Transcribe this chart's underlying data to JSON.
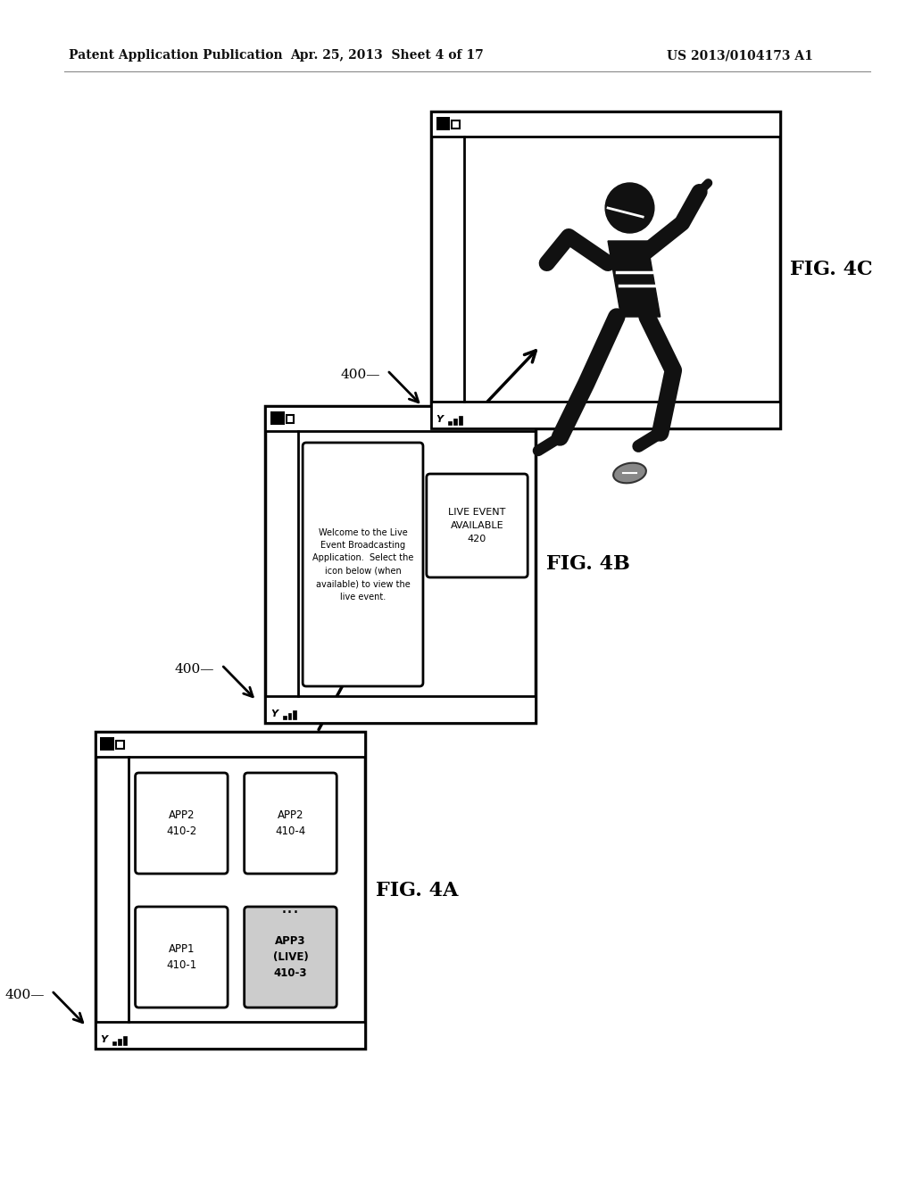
{
  "bg_color": "#ffffff",
  "header_text": "Patent Application Publication",
  "header_date": "Apr. 25, 2013  Sheet 4 of 17",
  "header_patent": "US 2013/0104173 A1",
  "fig4a_label": "FIG. 4A",
  "fig4b_label": "FIG. 4B",
  "fig4c_label": "FIG. 4C",
  "ref_label": "400",
  "phone_border": "#000000",
  "app_box_color": "#ffffff",
  "app3_color": "#d0d0d0",
  "fig4b_welcome": "Welcome to the Live\nEvent Broadcasting\nApplication.  Select the\nicon below (when\navailable) to view the\nlive event.",
  "fig4b_live": "LIVE EVENT\nAVAILABLE\n420",
  "apps_4a": [
    {
      "label": "APP2\n410-2",
      "bold": false,
      "shaded": false
    },
    {
      "label": "APP2\n410-4",
      "bold": false,
      "shaded": false
    },
    {
      "label": "APP1\n410-1",
      "bold": false,
      "shaded": false
    },
    {
      "label": "APP3\n(LIVE)\n410-3",
      "bold": true,
      "shaded": true
    }
  ]
}
